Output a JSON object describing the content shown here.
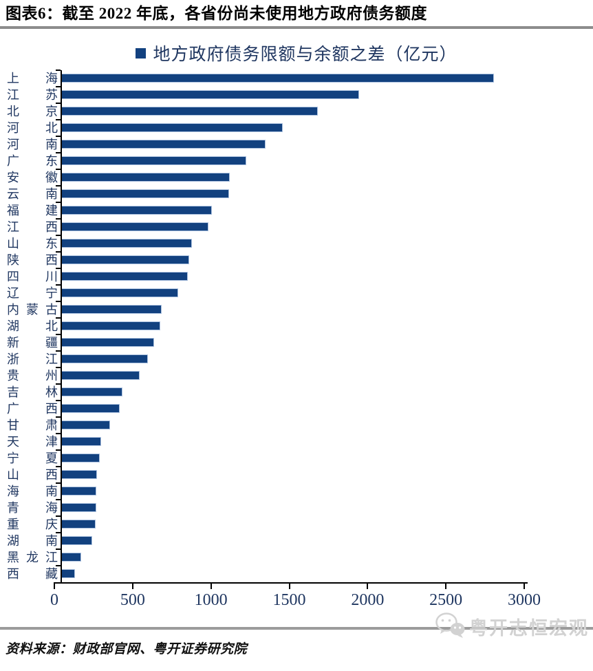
{
  "page": {
    "title": "图表6：截至 2022 年底，各省份尚未使用地方政府债务额度",
    "source": "资料来源：财政部官网、粤开证券研究院",
    "watermark": "粤开志恒宏观"
  },
  "legend": {
    "label": "地方政府债务限额与余额之差（亿元）"
  },
  "colors": {
    "bar": "#12417F",
    "chart_text": "#1f3660",
    "axis": "#000000",
    "title_text": "#000000",
    "rule_top": "#8c8c8c",
    "rule_bottom": "#9b9b9b",
    "watermark": "#d2d2d2"
  },
  "chart_data": {
    "type": "bar",
    "orientation": "horizontal",
    "title": "地方政府债务限额与余额之差（亿元）",
    "xlabel": "",
    "ylabel": "",
    "xlim": [
      0,
      3000
    ],
    "xticks": [
      0,
      500,
      1000,
      1500,
      2000,
      2500,
      3000
    ],
    "grid": false,
    "legend_position": "top-center",
    "categories": [
      "上海",
      "江苏",
      "北京",
      "河北",
      "河南",
      "广东",
      "安徽",
      "云南",
      "福建",
      "江西",
      "山东",
      "陕西",
      "四川",
      "辽宁",
      "内蒙古",
      "湖北",
      "新疆",
      "浙江",
      "贵州",
      "吉林",
      "广西",
      "甘肃",
      "天津",
      "宁夏",
      "山西",
      "海南",
      "青海",
      "重庆",
      "湖南",
      "黑龙江",
      "西藏"
    ],
    "values": [
      2760,
      1900,
      1635,
      1410,
      1300,
      1175,
      1070,
      1065,
      955,
      935,
      830,
      810,
      800,
      740,
      635,
      625,
      585,
      545,
      495,
      385,
      365,
      305,
      245,
      240,
      220,
      215,
      215,
      210,
      190,
      120,
      80
    ]
  }
}
